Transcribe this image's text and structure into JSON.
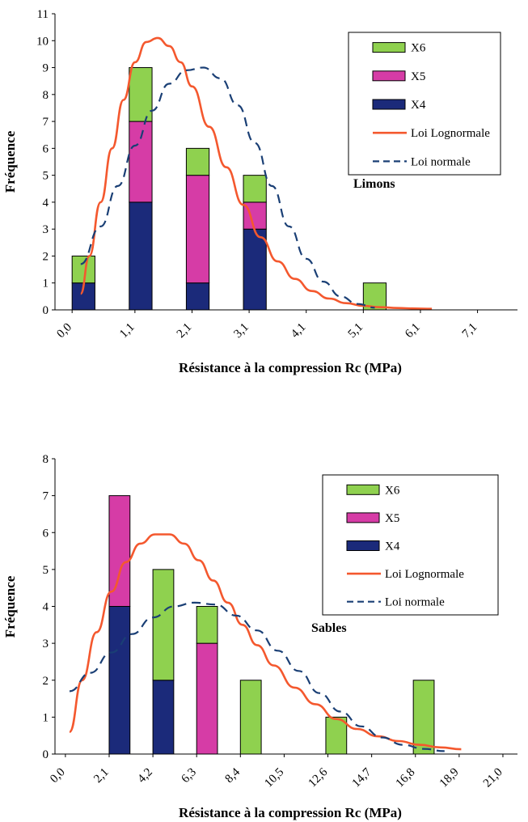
{
  "colors": {
    "X4": "#1b2a7a",
    "X5": "#d63ca6",
    "X6": "#8fd14f",
    "lognormal": "#f4582e",
    "normal": "#1a3f75",
    "axis": "#000000"
  },
  "chart_data": [
    {
      "type": "bar",
      "stacked": true,
      "annotation": "Limons",
      "xlabel": "Résistance à la compression Rc (MPa)",
      "ylabel": "Fréquence",
      "xlim": [
        -0.3,
        7.8
      ],
      "ylim": [
        0,
        11
      ],
      "y_ticks": [
        "0",
        "1",
        "2",
        "3",
        "4",
        "5",
        "6",
        "7",
        "8",
        "9",
        "10",
        "11"
      ],
      "x_ticks": [
        {
          "label": "0,0",
          "value": 0.0
        },
        {
          "label": "1,1",
          "value": 1.1
        },
        {
          "label": "2,1",
          "value": 2.1
        },
        {
          "label": "3,1",
          "value": 3.1
        },
        {
          "label": "4,1",
          "value": 4.1
        },
        {
          "label": "5,1",
          "value": 5.1
        },
        {
          "label": "6,1",
          "value": 6.1
        },
        {
          "label": "7,1",
          "value": 7.1
        }
      ],
      "grid": false,
      "legend_position": "top-right",
      "bar_centers": [
        0.2,
        1.2,
        2.2,
        3.2,
        5.3
      ],
      "bar_width": 0.4,
      "series": [
        {
          "name": "X6",
          "key": "X6",
          "kind": "bar",
          "values": [
            1,
            2,
            1,
            1,
            1
          ]
        },
        {
          "name": "X5",
          "key": "X5",
          "kind": "bar",
          "values": [
            0,
            3,
            4,
            1,
            0
          ]
        },
        {
          "name": "X4",
          "key": "X4",
          "kind": "bar",
          "values": [
            1,
            4,
            1,
            3,
            0
          ]
        },
        {
          "name": "Loi Lognormale",
          "key": "lognormal",
          "kind": "line",
          "dashed": false,
          "x": [
            0.15,
            0.3,
            0.5,
            0.7,
            0.9,
            1.1,
            1.3,
            1.5,
            1.7,
            1.9,
            2.1,
            2.4,
            2.7,
            3.0,
            3.3,
            3.6,
            3.9,
            4.2,
            4.5,
            4.8,
            5.1,
            5.4,
            5.7,
            6.0,
            6.3
          ],
          "y": [
            0.6,
            2.0,
            4.0,
            6.0,
            7.8,
            9.2,
            9.95,
            10.1,
            9.8,
            9.2,
            8.3,
            6.8,
            5.3,
            3.9,
            2.7,
            1.8,
            1.15,
            0.7,
            0.42,
            0.25,
            0.15,
            0.1,
            0.07,
            0.05,
            0.04
          ]
        },
        {
          "name": "Loi normale",
          "key": "normal",
          "kind": "line",
          "dashed": true,
          "x": [
            0.15,
            0.5,
            0.8,
            1.1,
            1.4,
            1.7,
            2.0,
            2.3,
            2.6,
            2.9,
            3.2,
            3.5,
            3.8,
            4.1,
            4.4,
            4.7,
            5.0,
            5.3
          ],
          "y": [
            1.7,
            3.1,
            4.6,
            6.1,
            7.4,
            8.4,
            8.9,
            9.0,
            8.6,
            7.6,
            6.2,
            4.6,
            3.1,
            1.9,
            1.05,
            0.5,
            0.22,
            0.08
          ]
        }
      ]
    },
    {
      "type": "bar",
      "stacked": true,
      "annotation": "Sables",
      "xlabel": "Résistance à la compression Rc (MPa)",
      "ylabel": "Fréquence",
      "xlim": [
        -0.5,
        21.7
      ],
      "ylim": [
        0,
        8
      ],
      "y_ticks": [
        "0",
        "1",
        "2",
        "3",
        "4",
        "5",
        "6",
        "7",
        "8"
      ],
      "x_ticks": [
        {
          "label": "0,0",
          "value": 0.0
        },
        {
          "label": "2,1",
          "value": 2.1
        },
        {
          "label": "4,2",
          "value": 4.2
        },
        {
          "label": "6,3",
          "value": 6.3
        },
        {
          "label": "8,4",
          "value": 8.4
        },
        {
          "label": "10,5",
          "value": 10.5
        },
        {
          "label": "12,6",
          "value": 12.6
        },
        {
          "label": "14,7",
          "value": 14.7
        },
        {
          "label": "16,8",
          "value": 16.8
        },
        {
          "label": "18,9",
          "value": 18.9
        },
        {
          "label": "21,0",
          "value": 21.0
        }
      ],
      "grid": false,
      "legend_position": "top-right",
      "bar_centers": [
        2.6,
        4.7,
        6.8,
        8.9,
        13.0,
        17.2
      ],
      "bar_width": 1.0,
      "series": [
        {
          "name": "X6",
          "key": "X6",
          "kind": "bar",
          "values": [
            0,
            3,
            1,
            2,
            1,
            2
          ]
        },
        {
          "name": "X5",
          "key": "X5",
          "kind": "bar",
          "values": [
            3,
            0,
            3,
            0,
            0,
            0
          ]
        },
        {
          "name": "X4",
          "key": "X4",
          "kind": "bar",
          "values": [
            4,
            2,
            0,
            0,
            0,
            0
          ]
        },
        {
          "name": "Loi Lognormale",
          "key": "lognormal",
          "kind": "line",
          "dashed": false,
          "x": [
            0.2,
            0.8,
            1.5,
            2.2,
            2.9,
            3.6,
            4.3,
            5.0,
            5.7,
            6.4,
            7.1,
            7.8,
            8.5,
            9.2,
            10.0,
            11.0,
            12.0,
            13.0,
            14.0,
            15.0,
            16.0,
            17.0,
            18.0,
            19.0
          ],
          "y": [
            0.6,
            2.0,
            3.3,
            4.4,
            5.2,
            5.7,
            5.95,
            5.95,
            5.7,
            5.25,
            4.7,
            4.1,
            3.5,
            2.95,
            2.4,
            1.8,
            1.35,
            0.95,
            0.68,
            0.48,
            0.35,
            0.25,
            0.18,
            0.13
          ]
        },
        {
          "name": "Loi normale",
          "key": "normal",
          "kind": "line",
          "dashed": true,
          "x": [
            0.2,
            1.2,
            2.2,
            3.2,
            4.2,
            5.2,
            6.2,
            7.2,
            8.2,
            9.2,
            10.2,
            11.2,
            12.2,
            13.2,
            14.2,
            15.2,
            16.2,
            17.2,
            18.2
          ],
          "y": [
            1.7,
            2.2,
            2.75,
            3.25,
            3.7,
            4.0,
            4.1,
            4.05,
            3.75,
            3.35,
            2.8,
            2.25,
            1.65,
            1.15,
            0.75,
            0.45,
            0.25,
            0.14,
            0.08
          ]
        }
      ]
    }
  ]
}
